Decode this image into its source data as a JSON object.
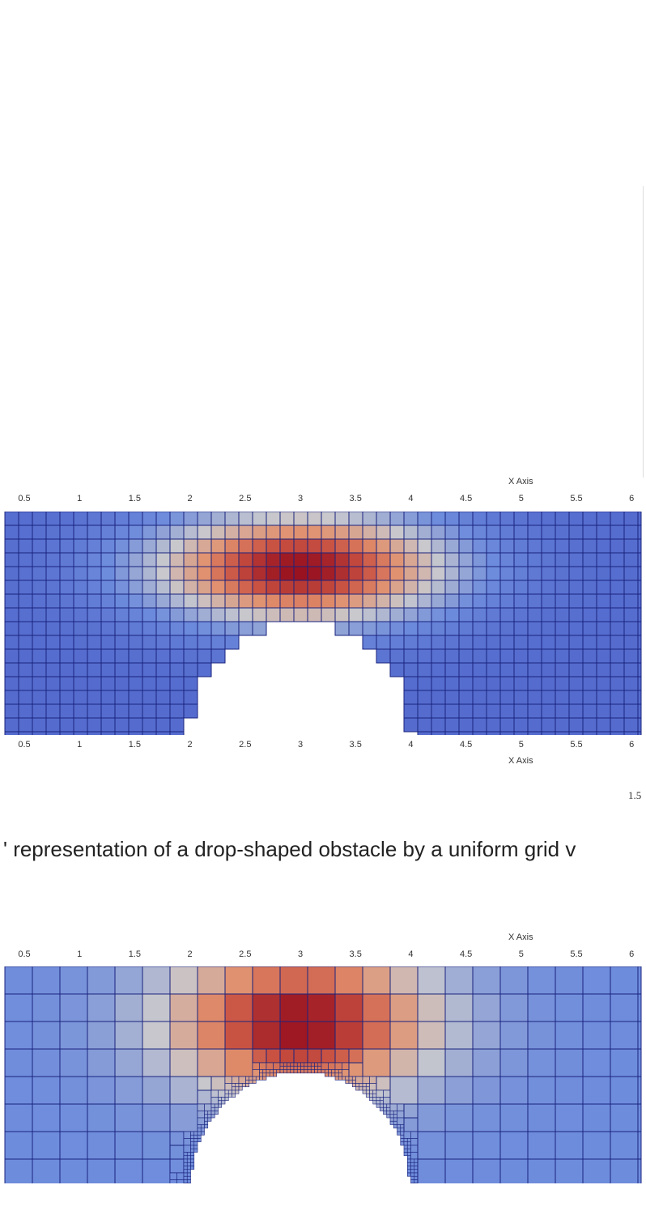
{
  "figure_top": {
    "x_axis_title_top": "X Axis",
    "x_axis_title_bottom": "X Axis",
    "x_ticks": [
      "0.5",
      "1",
      "1.5",
      "2",
      "2.5",
      "3",
      "3.5",
      "4",
      "4.5",
      "5",
      "5.5",
      "6"
    ],
    "mesh": "uniform grid",
    "obstacle": "drop-shaped obstacle"
  },
  "scale_fragment": "1.5",
  "caption_fragment": "' representation of a drop-shaped obstacle by a uniform grid v",
  "figure_bottom": {
    "x_axis_title_top": "X Axis",
    "x_ticks": [
      "0.5",
      "1",
      "1.5",
      "2",
      "2.5",
      "3",
      "3.5",
      "4",
      "4.5",
      "5",
      "5.5",
      "6"
    ],
    "mesh": "adaptively refined grid"
  },
  "colors": {
    "low": "#3b4cc0",
    "mid": "#dcdcdc",
    "high": "#b40426",
    "cell_border": "#1a237e"
  }
}
